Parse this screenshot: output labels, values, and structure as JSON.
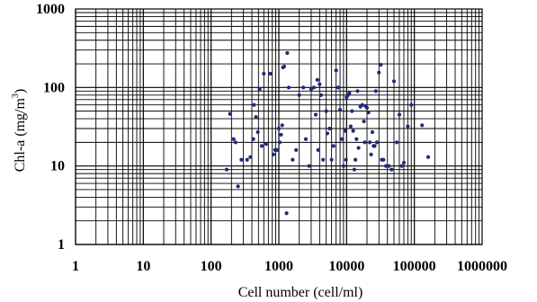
{
  "chart_data": {
    "type": "scatter",
    "title": "",
    "xlabel": "Cell number (cell/ml)",
    "ylabel_main": "Chl-a (mg/m",
    "ylabel_sup": "3",
    "ylabel_close": ")",
    "x_scale": "log",
    "y_scale": "log",
    "xlim": [
      1,
      1000000
    ],
    "ylim": [
      1,
      1000
    ],
    "x_ticks": [
      1,
      10,
      100,
      1000,
      10000,
      100000,
      1000000
    ],
    "x_tick_labels": [
      "1",
      "10",
      "100",
      "1000",
      "10000",
      "100000",
      "1000000"
    ],
    "y_ticks": [
      1,
      10,
      100,
      1000
    ],
    "y_tick_labels": [
      "1",
      "10",
      "100",
      "1000"
    ],
    "grid": true,
    "marker_color": "#1f2a7a",
    "points": [
      [
        170,
        9
      ],
      [
        190,
        46
      ],
      [
        215,
        22
      ],
      [
        230,
        20
      ],
      [
        250,
        5.5
      ],
      [
        280,
        12
      ],
      [
        340,
        12
      ],
      [
        380,
        13
      ],
      [
        420,
        22
      ],
      [
        430,
        60
      ],
      [
        460,
        42
      ],
      [
        490,
        27
      ],
      [
        520,
        95
      ],
      [
        560,
        18
      ],
      [
        600,
        150
      ],
      [
        650,
        19
      ],
      [
        750,
        150
      ],
      [
        830,
        14
      ],
      [
        880,
        16
      ],
      [
        950,
        16
      ],
      [
        1000,
        30
      ],
      [
        1030,
        20
      ],
      [
        1080,
        25
      ],
      [
        1120,
        33
      ],
      [
        1150,
        180
      ],
      [
        1200,
        185
      ],
      [
        1300,
        2.5
      ],
      [
        1330,
        275
      ],
      [
        1400,
        100
      ],
      [
        1600,
        12
      ],
      [
        1800,
        16
      ],
      [
        2000,
        80
      ],
      [
        2300,
        100
      ],
      [
        2500,
        22
      ],
      [
        2800,
        10
      ],
      [
        3000,
        95
      ],
      [
        3300,
        100
      ],
      [
        3500,
        45
      ],
      [
        3700,
        125
      ],
      [
        3800,
        16
      ],
      [
        4000,
        110
      ],
      [
        4200,
        80
      ],
      [
        4500,
        12
      ],
      [
        5000,
        50
      ],
      [
        5200,
        26
      ],
      [
        5600,
        30
      ],
      [
        6000,
        12
      ],
      [
        6400,
        18
      ],
      [
        7000,
        165
      ],
      [
        7500,
        100
      ],
      [
        8000,
        52
      ],
      [
        8500,
        22
      ],
      [
        9000,
        10
      ],
      [
        9500,
        28
      ],
      [
        9800,
        12
      ],
      [
        10000,
        75
      ],
      [
        10500,
        80
      ],
      [
        11000,
        85
      ],
      [
        11500,
        32
      ],
      [
        12000,
        50
      ],
      [
        12500,
        28
      ],
      [
        13000,
        9
      ],
      [
        13500,
        12
      ],
      [
        14000,
        22
      ],
      [
        14500,
        90
      ],
      [
        15000,
        17
      ],
      [
        16000,
        57
      ],
      [
        17000,
        60
      ],
      [
        18000,
        37
      ],
      [
        18500,
        20
      ],
      [
        19000,
        58
      ],
      [
        20000,
        55
      ],
      [
        21000,
        48
      ],
      [
        22000,
        20
      ],
      [
        23000,
        14
      ],
      [
        24000,
        27
      ],
      [
        25000,
        18
      ],
      [
        26000,
        18
      ],
      [
        27000,
        90
      ],
      [
        28000,
        20
      ],
      [
        30000,
        155
      ],
      [
        32000,
        195
      ],
      [
        33000,
        12
      ],
      [
        35000,
        12
      ],
      [
        38000,
        10
      ],
      [
        42000,
        10
      ],
      [
        46000,
        9
      ],
      [
        50000,
        120
      ],
      [
        55000,
        20
      ],
      [
        60000,
        45
      ],
      [
        65000,
        10
      ],
      [
        70000,
        11
      ],
      [
        80000,
        32
      ],
      [
        90000,
        60
      ],
      [
        130000,
        33
      ],
      [
        160000,
        13
      ]
    ]
  }
}
